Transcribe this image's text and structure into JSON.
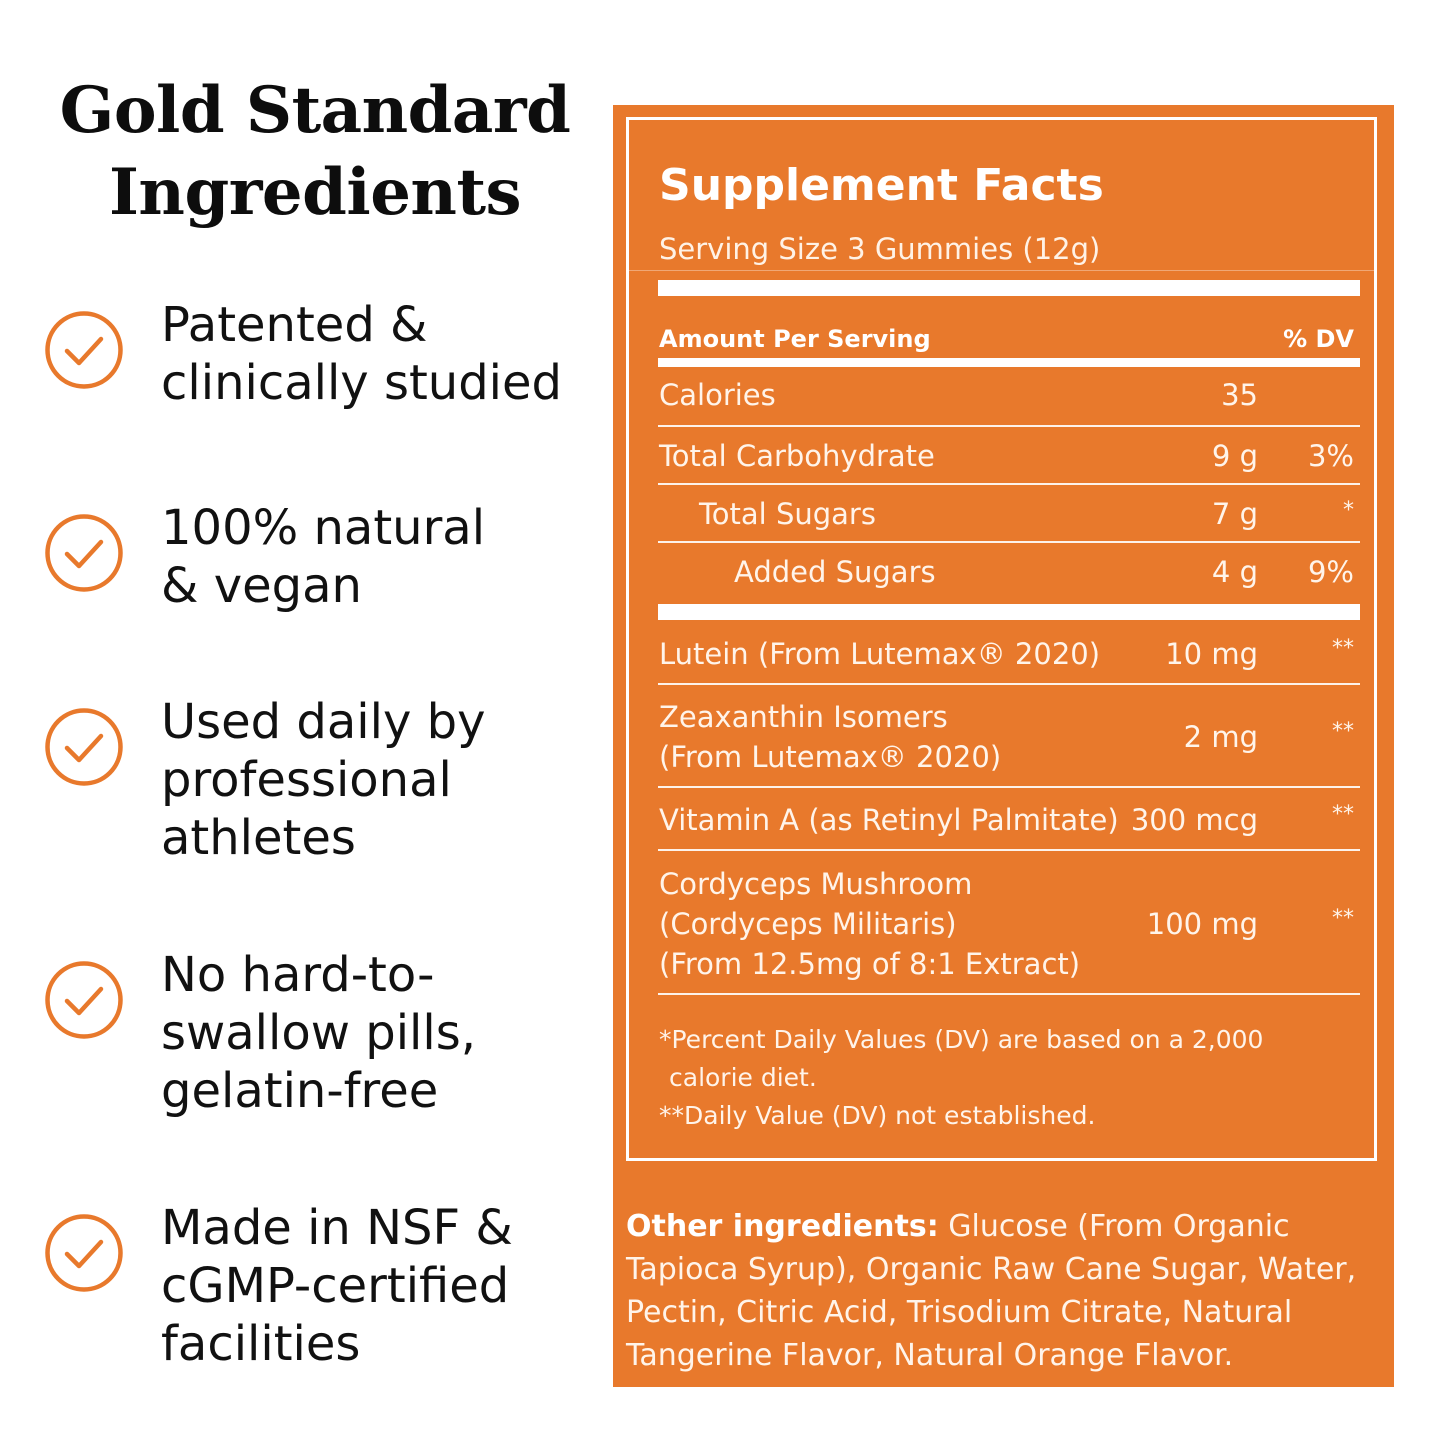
{
  "heading": {
    "line1": "Gold Standard",
    "line2": "Ingredients"
  },
  "features": [
    {
      "icon": "check-circle-icon",
      "lines": [
        "Patented &",
        "clinically studied"
      ]
    },
    {
      "icon": "check-circle-icon",
      "lines": [
        "100% natural",
        "& vegan"
      ]
    },
    {
      "icon": "check-circle-icon",
      "lines": [
        "Used daily by",
        "professional",
        "athletes"
      ]
    },
    {
      "icon": "check-circle-icon",
      "lines": [
        "No hard-to-",
        "swallow pills,",
        "gelatin-free"
      ]
    },
    {
      "icon": "check-circle-icon",
      "lines": [
        "Made in NSF &",
        "cGMP-certified",
        "facilities"
      ]
    }
  ],
  "colors": {
    "accent": "#E8792C",
    "text": "#111111",
    "panel_text": "#FFFFFF"
  },
  "facts": {
    "title": "Supplement Facts",
    "serving_size": "Serving Size 3 Gummies (12g)",
    "amount_header": "Amount Per Serving",
    "dv_header": "% DV",
    "rows": [
      {
        "name": [
          "Calories"
        ],
        "amount": "35",
        "dv": ""
      },
      {
        "name": [
          "Total Carbohydrate"
        ],
        "amount": "9 g",
        "dv": "3%"
      },
      {
        "name": [
          "Total Sugars"
        ],
        "amount": "7 g",
        "dv": "*"
      },
      {
        "name": [
          "Added Sugars"
        ],
        "amount": "4 g",
        "dv": "9%"
      },
      {
        "name": [
          "Lutein (From Lutemax® 2020)"
        ],
        "amount": "10 mg",
        "dv": "**"
      },
      {
        "name": [
          "Zeaxanthin Isomers",
          "(From Lutemax® 2020)"
        ],
        "amount": "2 mg",
        "dv": "**"
      },
      {
        "name": [
          "Vitamin A (as Retinyl Palmitate)"
        ],
        "amount": "300 mcg",
        "dv": "**"
      },
      {
        "name": [
          "Cordyceps Mushroom",
          "(Cordyceps Militaris)",
          "(From 12.5mg of 8:1 Extract)"
        ],
        "amount": "100 mg",
        "dv": "**"
      }
    ],
    "footnote1_line1": "*Percent Daily Values (DV) are based on a 2,000",
    "footnote1_line2": "calorie diet.",
    "footnote2": "**Daily Value (DV) not established."
  },
  "other_ingredients": {
    "label": "Other ingredients:",
    "lines": [
      " Glucose (From Organic",
      "Tapioca Syrup), Organic Raw Cane Sugar, Water,",
      "Pectin, Citric Acid, Trisodium Citrate, Natural",
      "Tangerine Flavor, Natural Orange Flavor."
    ]
  }
}
